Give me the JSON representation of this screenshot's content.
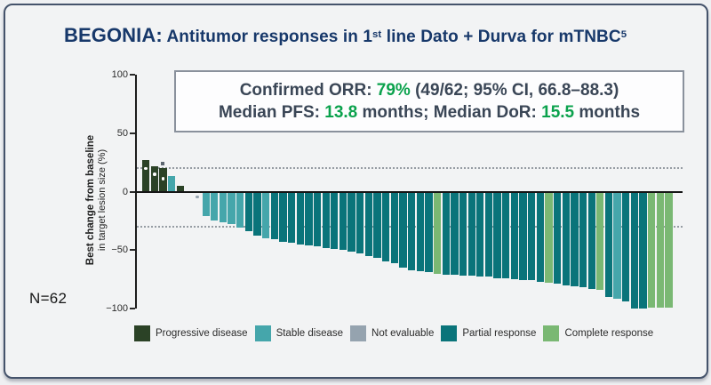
{
  "title": {
    "brand": "BEGONIA:",
    "segments": [
      {
        "t": " Antitumor responses in 1"
      },
      {
        "t": "st",
        "sup": true
      },
      {
        "t": " line Dato + Durva for mTNBC"
      },
      {
        "t": "5",
        "sup": true
      }
    ]
  },
  "stats_box": {
    "line1": [
      {
        "t": "Confirmed ORR: "
      },
      {
        "t": "79%",
        "green": true
      },
      {
        "t": " (49/62; 95% CI, 66.8–88.3)"
      }
    ],
    "line2": [
      {
        "t": "Median PFS: "
      },
      {
        "t": "13.8",
        "green": true
      },
      {
        "t": " months; Median DoR: "
      },
      {
        "t": "15.5",
        "green": true
      },
      {
        "t": " months"
      }
    ]
  },
  "n_label": "N=62",
  "chart_data": {
    "type": "bar",
    "subtype": "waterfall",
    "title": "Best change from baseline in target lesion size per patient (waterfall plot)",
    "ylabel_line1": "Best change from baseline",
    "ylabel_line2": "in target lesion size (%)",
    "xlabel": "",
    "ylim": [
      -100,
      100
    ],
    "yticks": [
      100,
      50,
      0,
      -50,
      -100
    ],
    "thresholds": [
      20,
      -30
    ],
    "grid": false,
    "legend_position": "bottom",
    "colors": {
      "PD": "#2b4226",
      "SD": "#45a6ab",
      "NE": "#95a3af",
      "PR": "#0a747a",
      "CR": "#7ab873"
    },
    "legend": [
      {
        "key": "PD",
        "label": "Progressive disease"
      },
      {
        "key": "SD",
        "label": "Stable disease"
      },
      {
        "key": "NE",
        "label": "Not evaluable"
      },
      {
        "key": "PR",
        "label": "Partial response"
      },
      {
        "key": "CR",
        "label": "Complete response"
      }
    ],
    "bars": [
      {
        "v": 27,
        "c": "PD",
        "m": 20
      },
      {
        "v": 22,
        "c": "PD",
        "m": 15
      },
      {
        "v": 20,
        "c": "PD",
        "m": 11,
        "t": true
      },
      {
        "v": 13,
        "c": "SD"
      },
      {
        "v": 5,
        "c": "PD"
      },
      {
        "v": 0,
        "c": "NE"
      },
      {
        "v": -2,
        "c": "NE",
        "dot": true
      },
      {
        "v": -21,
        "c": "SD"
      },
      {
        "v": -25,
        "c": "SD"
      },
      {
        "v": -26,
        "c": "SD"
      },
      {
        "v": -28,
        "c": "SD"
      },
      {
        "v": -31,
        "c": "SD"
      },
      {
        "v": -34,
        "c": "PR"
      },
      {
        "v": -38,
        "c": "PR"
      },
      {
        "v": -40,
        "c": "SD"
      },
      {
        "v": -41,
        "c": "PR"
      },
      {
        "v": -43,
        "c": "PR"
      },
      {
        "v": -44,
        "c": "PR"
      },
      {
        "v": -45,
        "c": "PR"
      },
      {
        "v": -46,
        "c": "PR"
      },
      {
        "v": -47,
        "c": "PR"
      },
      {
        "v": -48,
        "c": "PR"
      },
      {
        "v": -49,
        "c": "PR"
      },
      {
        "v": -50,
        "c": "PR"
      },
      {
        "v": -51,
        "c": "PR"
      },
      {
        "v": -53,
        "c": "PR"
      },
      {
        "v": -55,
        "c": "PR"
      },
      {
        "v": -57,
        "c": "PR"
      },
      {
        "v": -60,
        "c": "PR"
      },
      {
        "v": -61,
        "c": "PR"
      },
      {
        "v": -65,
        "c": "PR"
      },
      {
        "v": -67,
        "c": "PR"
      },
      {
        "v": -68,
        "c": "PR"
      },
      {
        "v": -69,
        "c": "PR"
      },
      {
        "v": -70,
        "c": "CR"
      },
      {
        "v": -71,
        "c": "PR"
      },
      {
        "v": -71,
        "c": "PR"
      },
      {
        "v": -72,
        "c": "PR"
      },
      {
        "v": -72,
        "c": "PR"
      },
      {
        "v": -73,
        "c": "PR"
      },
      {
        "v": -73,
        "c": "PR"
      },
      {
        "v": -74,
        "c": "PR"
      },
      {
        "v": -74,
        "c": "PR"
      },
      {
        "v": -75,
        "c": "PR"
      },
      {
        "v": -76,
        "c": "PR"
      },
      {
        "v": -76,
        "c": "PR"
      },
      {
        "v": -77,
        "c": "PR"
      },
      {
        "v": -78,
        "c": "CR"
      },
      {
        "v": -79,
        "c": "PR"
      },
      {
        "v": -80,
        "c": "PR"
      },
      {
        "v": -81,
        "c": "PR"
      },
      {
        "v": -82,
        "c": "PR"
      },
      {
        "v": -83,
        "c": "PR"
      },
      {
        "v": -84,
        "c": "CR"
      },
      {
        "v": -90,
        "c": "PR"
      },
      {
        "v": -92,
        "c": "SD"
      },
      {
        "v": -94,
        "c": "PR"
      },
      {
        "v": -100,
        "c": "PR"
      },
      {
        "v": -100,
        "c": "PR"
      },
      {
        "v": -99,
        "c": "CR"
      },
      {
        "v": -99,
        "c": "CR"
      },
      {
        "v": -99,
        "c": "CR"
      }
    ]
  }
}
